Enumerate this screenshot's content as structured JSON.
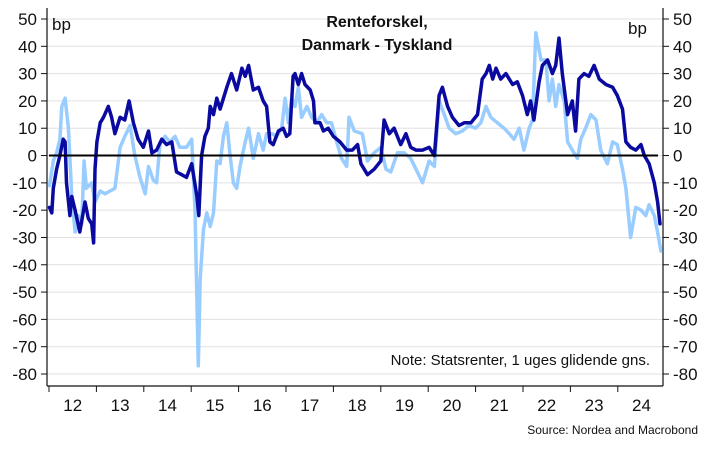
{
  "chart_data": {
    "type": "line",
    "title": "Renteforskel,",
    "subtitle": "Danmark - Tyskland",
    "ylabel_left": "bp",
    "ylabel_right": "bp",
    "note": "Note: Statsrenter, 1 uges glidende gns.",
    "source": "Source: Nordea and Macrobond",
    "ylim": [
      -80,
      50
    ],
    "yticks": [
      "50",
      "40",
      "30",
      "20",
      "10",
      "0",
      "-10",
      "-20",
      "-30",
      "-40",
      "-50",
      "-60",
      "-70",
      "-80"
    ],
    "xlim": [
      2012,
      2025
    ],
    "xtick_labels": [
      "12",
      "13",
      "14",
      "15",
      "16",
      "17",
      "18",
      "19",
      "20",
      "21",
      "22",
      "23",
      "24"
    ],
    "grid": true,
    "legend": "none",
    "series": [
      {
        "color": "#0a0aa0",
        "x": [
          2012.01,
          2012.06,
          2012.09,
          2012.16,
          2012.23,
          2012.3,
          2012.34,
          2012.37,
          2012.44,
          2012.48,
          2012.55,
          2012.65,
          2012.76,
          2012.83,
          2012.9,
          2012.94,
          2012.97,
          2013.01,
          2013.08,
          2013.15,
          2013.25,
          2013.32,
          2013.39,
          2013.5,
          2013.6,
          2013.69,
          2013.78,
          2013.88,
          2013.99,
          2014.1,
          2014.17,
          2014.27,
          2014.38,
          2014.48,
          2014.59,
          2014.69,
          2014.8,
          2014.9,
          2015.01,
          2015.12,
          2015.16,
          2015.22,
          2015.29,
          2015.36,
          2015.4,
          2015.47,
          2015.54,
          2015.61,
          2015.75,
          2015.85,
          2015.96,
          2016.07,
          2016.14,
          2016.21,
          2016.31,
          2016.42,
          2016.52,
          2016.59,
          2016.66,
          2016.73,
          2016.84,
          2016.94,
          2017.01,
          2017.08,
          2017.15,
          2017.19,
          2017.26,
          2017.33,
          2017.4,
          2017.51,
          2017.58,
          2017.61,
          2017.72,
          2017.79,
          2017.89,
          2018.0,
          2018.14,
          2018.28,
          2018.4,
          2018.51,
          2018.58,
          2018.72,
          2018.86,
          2019.0,
          2019.07,
          2019.18,
          2019.28,
          2019.42,
          2019.53,
          2019.63,
          2019.74,
          2019.88,
          2020.02,
          2020.13,
          2020.23,
          2020.3,
          2020.41,
          2020.51,
          2020.65,
          2020.76,
          2020.9,
          2021.04,
          2021.14,
          2021.22,
          2021.29,
          2021.36,
          2021.43,
          2021.53,
          2021.64,
          2021.78,
          2021.88,
          2021.99,
          2022.09,
          2022.16,
          2022.23,
          2022.34,
          2022.41,
          2022.52,
          2022.62,
          2022.69,
          2022.76,
          2022.83,
          2022.94,
          2023.04,
          2023.11,
          2023.18,
          2023.29,
          2023.39,
          2023.5,
          2023.61,
          2023.75,
          2023.89,
          2023.99,
          2024.1,
          2024.17,
          2024.27,
          2024.38,
          2024.49,
          2024.56,
          2024.66,
          2024.77,
          2024.84,
          2024.89
        ],
        "y": [
          -19,
          -21,
          -12,
          -5,
          0,
          6,
          5,
          -10,
          -22,
          -15,
          -20,
          -28,
          -17,
          -23,
          -25,
          -32,
          -5,
          5,
          12,
          14,
          18,
          14,
          8,
          14,
          13,
          20,
          12,
          6,
          3,
          9,
          1,
          2,
          6,
          4,
          5,
          -6,
          -7,
          -8,
          -3,
          -15,
          -22,
          0,
          7,
          10,
          18,
          15,
          21,
          17,
          25,
          30,
          24,
          32,
          29,
          33,
          24,
          25,
          20,
          18,
          5,
          4,
          9,
          10,
          7,
          8,
          29,
          30,
          26,
          30,
          26,
          24,
          20,
          12,
          12,
          9,
          10,
          7,
          5,
          2,
          2,
          4,
          -3,
          -7,
          -5,
          -2,
          13,
          8,
          10,
          4,
          8,
          3,
          2,
          2,
          3,
          0,
          22,
          25,
          18,
          14,
          11,
          12,
          12,
          15,
          28,
          30,
          33,
          28,
          32,
          28,
          30,
          26,
          27,
          22,
          15,
          20,
          13,
          27,
          33,
          35,
          30,
          33,
          43,
          30,
          15,
          20,
          9,
          28,
          30,
          29,
          33,
          28,
          26,
          25,
          22,
          17,
          5,
          3,
          2,
          4,
          0,
          -3,
          -10,
          -17,
          -25
        ]
      },
      {
        "color": "#99ccff",
        "x": [
          2012.01,
          2012.09,
          2012.16,
          2012.23,
          2012.27,
          2012.34,
          2012.41,
          2012.48,
          2012.55,
          2012.62,
          2012.69,
          2012.74,
          2012.79,
          2012.9,
          2012.97,
          2013.08,
          2013.18,
          2013.29,
          2013.39,
          2013.5,
          2013.6,
          2013.71,
          2013.81,
          2013.92,
          2014.03,
          2014.1,
          2014.2,
          2014.27,
          2014.34,
          2014.45,
          2014.55,
          2014.66,
          2014.76,
          2014.9,
          2015.01,
          2015.08,
          2015.15,
          2015.19,
          2015.26,
          2015.33,
          2015.4,
          2015.47,
          2015.54,
          2015.61,
          2015.68,
          2015.75,
          2015.82,
          2015.89,
          2015.96,
          2016.03,
          2016.14,
          2016.21,
          2016.31,
          2016.42,
          2016.52,
          2016.59,
          2016.7,
          2016.8,
          2016.91,
          2016.98,
          2017.05,
          2017.12,
          2017.19,
          2017.26,
          2017.33,
          2017.44,
          2017.54,
          2017.65,
          2017.75,
          2017.86,
          2017.96,
          2018.07,
          2018.17,
          2018.28,
          2018.33,
          2018.44,
          2018.61,
          2018.72,
          2018.86,
          2019.0,
          2019.11,
          2019.21,
          2019.35,
          2019.49,
          2019.63,
          2019.77,
          2019.88,
          2020.02,
          2020.13,
          2020.23,
          2020.34,
          2020.44,
          2020.58,
          2020.72,
          2020.86,
          2021.0,
          2021.11,
          2021.22,
          2021.32,
          2021.46,
          2021.6,
          2021.71,
          2021.81,
          2021.92,
          2022.02,
          2022.13,
          2022.2,
          2022.27,
          2022.38,
          2022.48,
          2022.55,
          2022.62,
          2022.69,
          2022.76,
          2022.87,
          2022.94,
          2023.04,
          2023.15,
          2023.22,
          2023.32,
          2023.43,
          2023.54,
          2023.64,
          2023.78,
          2023.89,
          2023.99,
          2024.1,
          2024.17,
          2024.27,
          2024.38,
          2024.49,
          2024.59,
          2024.66,
          2024.77,
          2024.84,
          2024.91
        ],
        "y": [
          -11,
          -2,
          1,
          6,
          18,
          21,
          10,
          -15,
          -28,
          -22,
          -25,
          -2,
          -12,
          -10,
          -17,
          -13,
          -14,
          -13,
          -12,
          3,
          7,
          11,
          0,
          -8,
          -14,
          -4,
          -9,
          -10,
          4,
          7,
          5,
          7,
          3,
          3,
          6,
          -20,
          -77,
          -45,
          -27,
          -21,
          -26,
          -21,
          -2,
          -3,
          7,
          12,
          0,
          -10,
          -12,
          -4,
          5,
          10,
          -1,
          8,
          2,
          8,
          8,
          7,
          10,
          21,
          12,
          21,
          18,
          25,
          14,
          18,
          14,
          12,
          15,
          12,
          12,
          5,
          -1,
          -4,
          14,
          9,
          8,
          -2,
          1,
          3,
          -5,
          -6,
          1,
          1,
          -1,
          -6,
          -10,
          -2,
          -4,
          20,
          15,
          10,
          8,
          9,
          11,
          10,
          12,
          18,
          14,
          12,
          10,
          8,
          6,
          10,
          2,
          10,
          13,
          45,
          35,
          35,
          20,
          28,
          18,
          26,
          20,
          5,
          2,
          -1,
          6,
          10,
          15,
          13,
          2,
          -3,
          5,
          4,
          -5,
          -12,
          -30,
          -19,
          -20,
          -22,
          -18,
          -22,
          -28,
          -35
        ]
      }
    ]
  }
}
